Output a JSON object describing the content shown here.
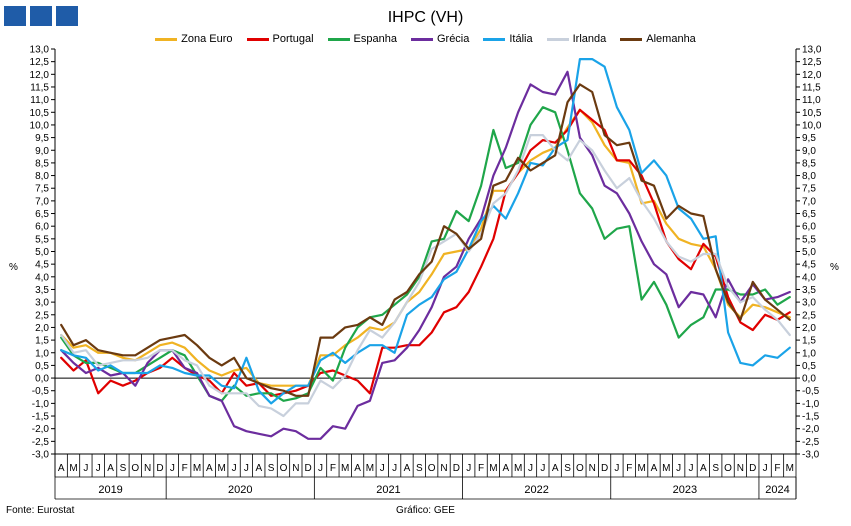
{
  "header": {
    "title": "IHPC (VH)"
  },
  "footer": {
    "source": "Fonte: Eurostat",
    "credit": "Gráfico: GEE"
  },
  "chart_data": {
    "type": "line",
    "title": "IHPC (VH)",
    "ylabel_left": "%",
    "ylabel_right": "%",
    "ylim": [
      -3.0,
      13.0
    ],
    "ytick_step": 0.5,
    "grid": false,
    "legend_position": "top",
    "x": [
      "A",
      "M",
      "J",
      "J",
      "A",
      "S",
      "O",
      "N",
      "D",
      "J",
      "F",
      "M",
      "A",
      "M",
      "J",
      "J",
      "A",
      "S",
      "O",
      "N",
      "D",
      "J",
      "F",
      "M",
      "A",
      "M",
      "J",
      "J",
      "A",
      "S",
      "O",
      "N",
      "D",
      "J",
      "F",
      "M",
      "A",
      "M",
      "J",
      "J",
      "A",
      "S",
      "O",
      "N",
      "D",
      "J",
      "F",
      "M",
      "A",
      "M",
      "J",
      "J",
      "A",
      "S",
      "O",
      "N",
      "D",
      "J",
      "F",
      "M"
    ],
    "year_labels": [
      {
        "label": "2019",
        "start": 0,
        "end": 8
      },
      {
        "label": "2020",
        "start": 9,
        "end": 20
      },
      {
        "label": "2021",
        "start": 21,
        "end": 32
      },
      {
        "label": "2022",
        "start": 33,
        "end": 44
      },
      {
        "label": "2023",
        "start": 45,
        "end": 56
      },
      {
        "label": "2024",
        "start": 57,
        "end": 59
      }
    ],
    "series": [
      {
        "name": "Zona Euro",
        "color": "#f0b323",
        "values": [
          1.7,
          1.2,
          1.3,
          1.0,
          1.0,
          0.8,
          0.7,
          1.0,
          1.3,
          1.4,
          1.2,
          0.7,
          0.3,
          0.1,
          0.3,
          0.4,
          -0.2,
          -0.3,
          -0.3,
          -0.3,
          -0.3,
          0.9,
          0.9,
          1.3,
          1.6,
          2.0,
          1.9,
          2.2,
          3.0,
          3.4,
          4.1,
          4.9,
          5.0,
          5.1,
          5.9,
          7.4,
          7.4,
          8.1,
          8.6,
          8.9,
          9.1,
          9.9,
          10.6,
          10.1,
          9.2,
          8.6,
          8.5,
          6.9,
          7.0,
          6.1,
          5.5,
          5.3,
          5.2,
          4.3,
          2.9,
          2.4,
          2.9,
          2.8,
          2.6,
          2.4
        ]
      },
      {
        "name": "Portugal",
        "color": "#e00000",
        "values": [
          0.8,
          0.3,
          0.7,
          -0.6,
          -0.1,
          -0.3,
          -0.1,
          0.2,
          0.4,
          0.8,
          0.4,
          0.1,
          -0.1,
          -0.6,
          0.2,
          -0.3,
          -0.2,
          -0.7,
          -0.6,
          -0.5,
          -0.3,
          0.2,
          0.3,
          0.1,
          -0.1,
          -0.6,
          1.2,
          1.2,
          1.3,
          1.3,
          1.8,
          2.6,
          2.8,
          3.4,
          4.4,
          5.5,
          7.4,
          8.1,
          9.0,
          9.4,
          9.3,
          9.8,
          10.6,
          10.2,
          9.8,
          8.6,
          8.6,
          8.0,
          6.9,
          5.4,
          4.7,
          4.3,
          5.3,
          4.8,
          3.2,
          2.2,
          1.9,
          2.5,
          2.3,
          2.6
        ]
      },
      {
        "name": "Espanha",
        "color": "#1fa64a",
        "values": [
          1.6,
          0.9,
          0.6,
          0.6,
          0.4,
          0.2,
          0.2,
          0.5,
          0.8,
          1.1,
          0.9,
          0.1,
          -0.7,
          -0.9,
          -0.3,
          -0.7,
          -0.6,
          -0.6,
          -0.9,
          -0.8,
          -0.6,
          0.4,
          -0.1,
          1.2,
          2.0,
          2.4,
          2.5,
          2.9,
          3.3,
          4.0,
          5.4,
          5.5,
          6.6,
          6.2,
          7.6,
          9.8,
          8.3,
          8.5,
          10.0,
          10.7,
          10.5,
          9.0,
          7.3,
          6.7,
          5.5,
          5.9,
          6.0,
          3.1,
          3.8,
          2.9,
          1.6,
          2.1,
          2.4,
          3.5,
          3.5,
          3.3,
          3.3,
          3.5,
          2.9,
          3.2
        ]
      },
      {
        "name": "Grécia",
        "color": "#6c2d9e",
        "values": [
          1.1,
          0.6,
          0.2,
          0.4,
          0.1,
          0.2,
          -0.3,
          0.6,
          1.1,
          1.1,
          0.4,
          0.2,
          -0.7,
          -0.9,
          -1.9,
          -2.1,
          -2.2,
          -2.3,
          -2.0,
          -2.1,
          -2.4,
          -2.4,
          -1.9,
          -2.0,
          -1.1,
          -0.9,
          0.6,
          0.7,
          1.2,
          1.9,
          2.8,
          4.0,
          4.4,
          5.5,
          6.3,
          8.0,
          9.1,
          10.5,
          11.6,
          11.3,
          11.2,
          12.1,
          9.5,
          8.8,
          7.6,
          7.3,
          6.5,
          5.4,
          4.5,
          4.1,
          2.8,
          3.4,
          3.3,
          2.4,
          3.9,
          3.0,
          3.7,
          3.1,
          3.2,
          3.4
        ]
      },
      {
        "name": "Itália",
        "color": "#1aa3e8",
        "values": [
          1.1,
          0.9,
          0.8,
          0.3,
          0.5,
          0.2,
          0.2,
          0.2,
          0.5,
          0.4,
          0.2,
          0.1,
          0.1,
          -0.3,
          -0.4,
          0.8,
          -0.5,
          -1.0,
          -0.6,
          -0.3,
          -0.3,
          0.7,
          1.0,
          0.6,
          1.0,
          1.3,
          1.3,
          1.0,
          2.5,
          2.9,
          3.2,
          3.9,
          4.2,
          5.1,
          6.2,
          6.8,
          6.3,
          7.3,
          8.5,
          8.4,
          9.1,
          9.4,
          12.6,
          12.6,
          12.3,
          10.7,
          9.8,
          8.1,
          8.6,
          8.0,
          6.7,
          6.3,
          5.5,
          5.6,
          1.8,
          0.6,
          0.5,
          0.9,
          0.8,
          1.2
        ]
      },
      {
        "name": "Irlanda",
        "color": "#c8d0dc",
        "values": [
          1.7,
          1.0,
          1.1,
          0.5,
          0.6,
          0.7,
          0.7,
          0.8,
          1.1,
          1.1,
          0.7,
          0.5,
          -0.3,
          -0.6,
          -0.6,
          -0.6,
          -1.1,
          -1.2,
          -1.5,
          -1.0,
          -1.0,
          -0.1,
          -0.4,
          0.1,
          1.1,
          1.9,
          1.6,
          2.2,
          3.0,
          3.8,
          5.1,
          5.4,
          5.7,
          5.0,
          5.7,
          6.9,
          7.3,
          8.2,
          9.6,
          9.6,
          9.0,
          8.6,
          9.4,
          9.0,
          8.2,
          7.5,
          7.9,
          7.0,
          6.3,
          5.4,
          4.8,
          4.6,
          4.9,
          4.9,
          3.6,
          3.0,
          3.2,
          2.7,
          2.3,
          1.7
        ]
      },
      {
        "name": "Alemanha",
        "color": "#6b3a10",
        "values": [
          2.1,
          1.3,
          1.5,
          1.1,
          1.0,
          0.9,
          0.9,
          1.2,
          1.5,
          1.6,
          1.7,
          1.3,
          0.8,
          0.5,
          0.8,
          0.0,
          -0.2,
          -0.4,
          -0.5,
          -0.7,
          -0.7,
          1.6,
          1.6,
          2.0,
          2.1,
          2.4,
          2.1,
          3.1,
          3.4,
          4.1,
          4.6,
          6.0,
          5.7,
          5.1,
          5.5,
          7.6,
          7.8,
          8.7,
          8.2,
          8.5,
          8.8,
          10.9,
          11.6,
          11.3,
          9.6,
          9.2,
          9.3,
          7.8,
          7.6,
          6.3,
          6.8,
          6.5,
          6.4,
          4.3,
          3.0,
          2.3,
          3.8,
          3.1,
          2.7,
          2.3
        ]
      }
    ]
  }
}
